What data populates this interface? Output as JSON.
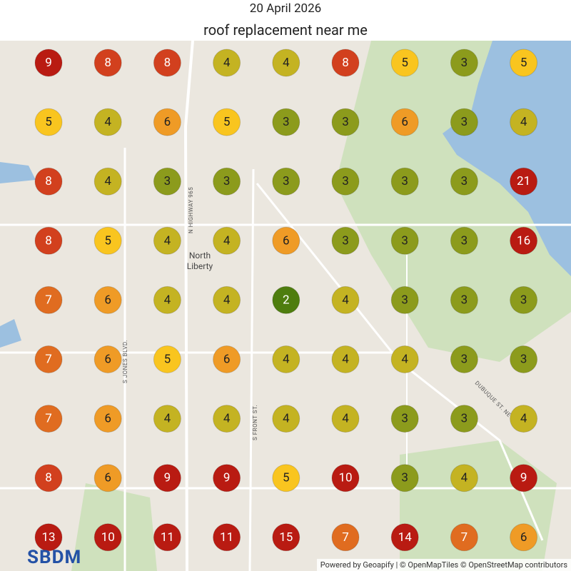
{
  "header": {
    "date": "20 April 2026",
    "keyword": "roof replacement near me"
  },
  "grid": {
    "rows": [
      [
        9,
        8,
        8,
        4,
        4,
        8,
        5,
        3,
        5
      ],
      [
        5,
        4,
        6,
        5,
        3,
        3,
        6,
        3,
        4
      ],
      [
        8,
        4,
        3,
        3,
        3,
        3,
        3,
        3,
        21
      ],
      [
        8,
        5,
        4,
        4,
        6,
        3,
        3,
        3,
        16
      ],
      [
        7,
        6,
        4,
        4,
        2,
        4,
        3,
        3,
        3
      ],
      [
        7,
        6,
        5,
        6,
        4,
        4,
        4,
        3,
        3
      ],
      [
        7,
        6,
        4,
        4,
        4,
        4,
        3,
        3,
        4
      ],
      [
        8,
        6,
        9,
        9,
        5,
        10,
        3,
        4,
        9
      ],
      [
        13,
        10,
        11,
        11,
        15,
        7,
        14,
        7,
        6
      ]
    ]
  },
  "map_labels": {
    "highway": "N HIGHWAY 965",
    "town": "North\nLiberty",
    "jones": "S JONES BLVD.",
    "front": "S FRONT ST.",
    "dubuque": "DUBUQUE ST. NE"
  },
  "logo": "SBDM",
  "attribution": "Powered by Geoapify | © OpenMapTiles © OpenStreetMap contributors"
}
